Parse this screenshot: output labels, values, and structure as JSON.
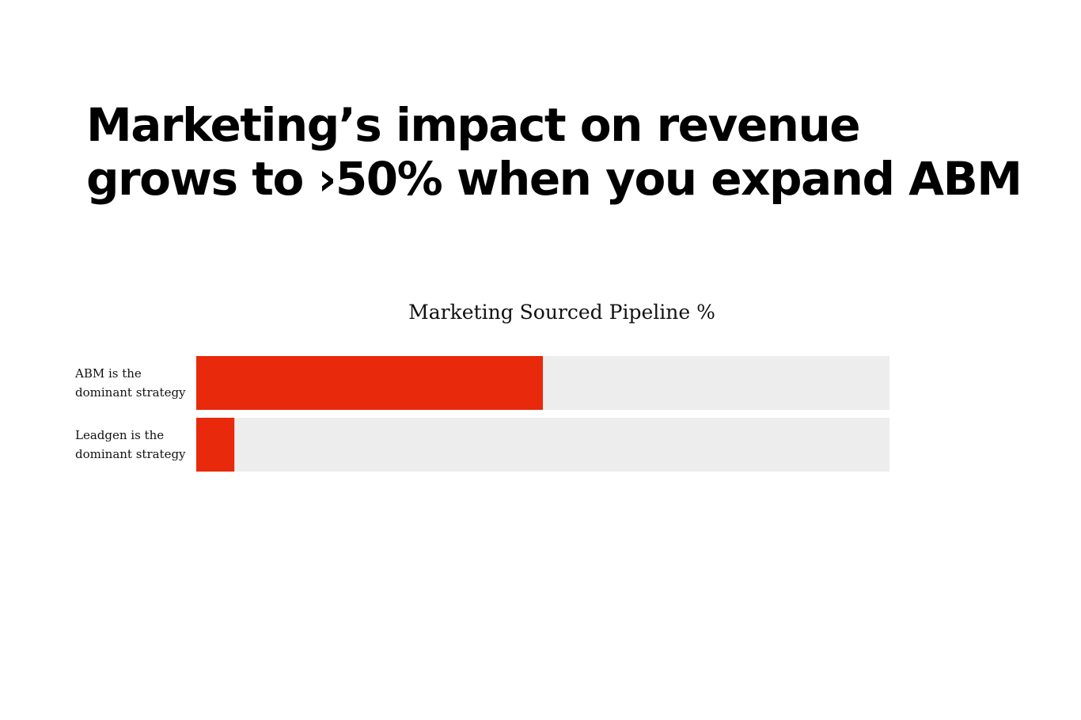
{
  "headline": {
    "line1": "Marketing’s impact on revenue",
    "line2": "grows to ›50% when you expand ABM"
  },
  "chart_data": {
    "type": "bar",
    "orientation": "horizontal",
    "title": "Marketing Sourced Pipeline %",
    "categories": [
      [
        "ABM is the",
        "dominant strategy"
      ],
      [
        "Leadgen is the",
        "dominant strategy"
      ]
    ],
    "values": [
      50,
      5.5
    ],
    "xlim": [
      0,
      100
    ],
    "grid": false,
    "colors": {
      "bar": "#e8290b",
      "track": "#ededed"
    }
  }
}
